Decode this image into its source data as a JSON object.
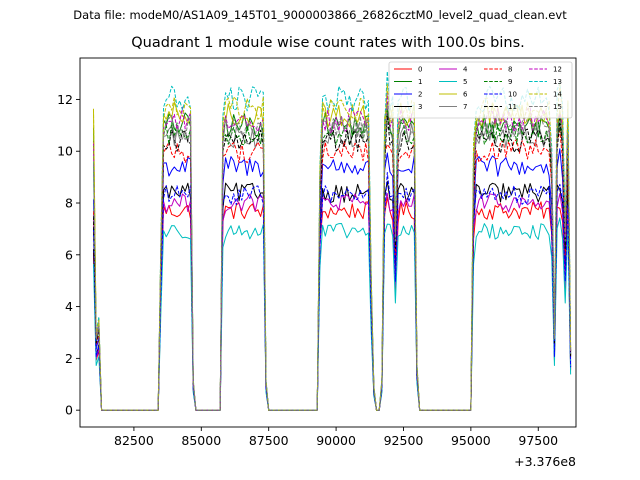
{
  "suptitle": "Data file: modeM0/AS1A09_145T01_9000003866_26826cztM0_level2_quad_clean.evt",
  "chart_data": {
    "type": "line",
    "title": "Quadrant 1 module wise count rates with 100.0s bins.",
    "xlabel": "",
    "ylabel": "",
    "offset_text": "+3.376e8",
    "xlim": [
      80500,
      98900
    ],
    "ylim": [
      -0.65,
      13.6
    ],
    "xticks": [
      82500,
      85000,
      87500,
      90000,
      92500,
      95000,
      97500
    ],
    "yticks": [
      0,
      2,
      4,
      6,
      8,
      10,
      12
    ],
    "grid": false,
    "legend": {
      "placement": "top-right",
      "ncol": 4
    },
    "series": [
      {
        "name": "0",
        "color": "#ff0000",
        "dash": "solid",
        "level": 7.7
      },
      {
        "name": "1",
        "color": "#008000",
        "dash": "solid",
        "level": 11.0
      },
      {
        "name": "2",
        "color": "#0000ff",
        "dash": "solid",
        "level": 9.4
      },
      {
        "name": "3",
        "color": "#000000",
        "dash": "solid",
        "level": 8.4
      },
      {
        "name": "4",
        "color": "#bf00bf",
        "dash": "solid",
        "level": 8.0
      },
      {
        "name": "5",
        "color": "#00bfbf",
        "dash": "solid",
        "level": 6.9
      },
      {
        "name": "6",
        "color": "#bfbf00",
        "dash": "solid",
        "level": 11.4
      },
      {
        "name": "7",
        "color": "#808080",
        "dash": "solid",
        "level": 10.6
      },
      {
        "name": "8",
        "color": "#ff0000",
        "dash": "dashed",
        "level": 10.0
      },
      {
        "name": "9",
        "color": "#008000",
        "dash": "dashed",
        "level": 10.7
      },
      {
        "name": "10",
        "color": "#0000ff",
        "dash": "dashed",
        "level": 8.3
      },
      {
        "name": "11",
        "color": "#000000",
        "dash": "dashed",
        "level": 10.4
      },
      {
        "name": "12",
        "color": "#bf00bf",
        "dash": "dashed",
        "level": 11.2
      },
      {
        "name": "13",
        "color": "#00bfbf",
        "dash": "dashed",
        "level": 12.0
      },
      {
        "name": "14",
        "color": "#bfbf00",
        "dash": "dashed",
        "level": 11.6
      },
      {
        "name": "15",
        "color": "#808080",
        "dash": "dashed",
        "level": 10.9
      }
    ],
    "profile": {
      "x": [
        81000,
        81100,
        81200,
        81300,
        83400,
        83500,
        83600,
        84600,
        84700,
        84800,
        84900,
        85700,
        85800,
        85900,
        87300,
        87400,
        87500,
        89300,
        89400,
        89500,
        91200,
        91300,
        91400,
        91500,
        91600,
        91700,
        91800,
        91900,
        92000,
        92100,
        92200,
        92300,
        92400,
        92900,
        93000,
        93100,
        95000,
        95100,
        95200,
        97900,
        98000,
        98100,
        98200,
        98300,
        98400,
        98500,
        98600,
        98700
      ],
      "y": [
        0.87,
        0.25,
        0.3,
        0,
        0,
        0.55,
        1,
        1,
        0.1,
        0,
        0,
        0,
        0.95,
        1,
        1,
        0.1,
        0,
        0,
        0.8,
        1,
        1,
        0.45,
        0.08,
        0,
        0,
        0.1,
        0.95,
        1.07,
        1,
        0.98,
        0.6,
        0.97,
        1,
        1,
        0.15,
        0,
        0,
        0.85,
        1,
        1,
        0.85,
        0.25,
        1,
        1.05,
        0.97,
        0.6,
        1,
        0.2
      ]
    }
  }
}
